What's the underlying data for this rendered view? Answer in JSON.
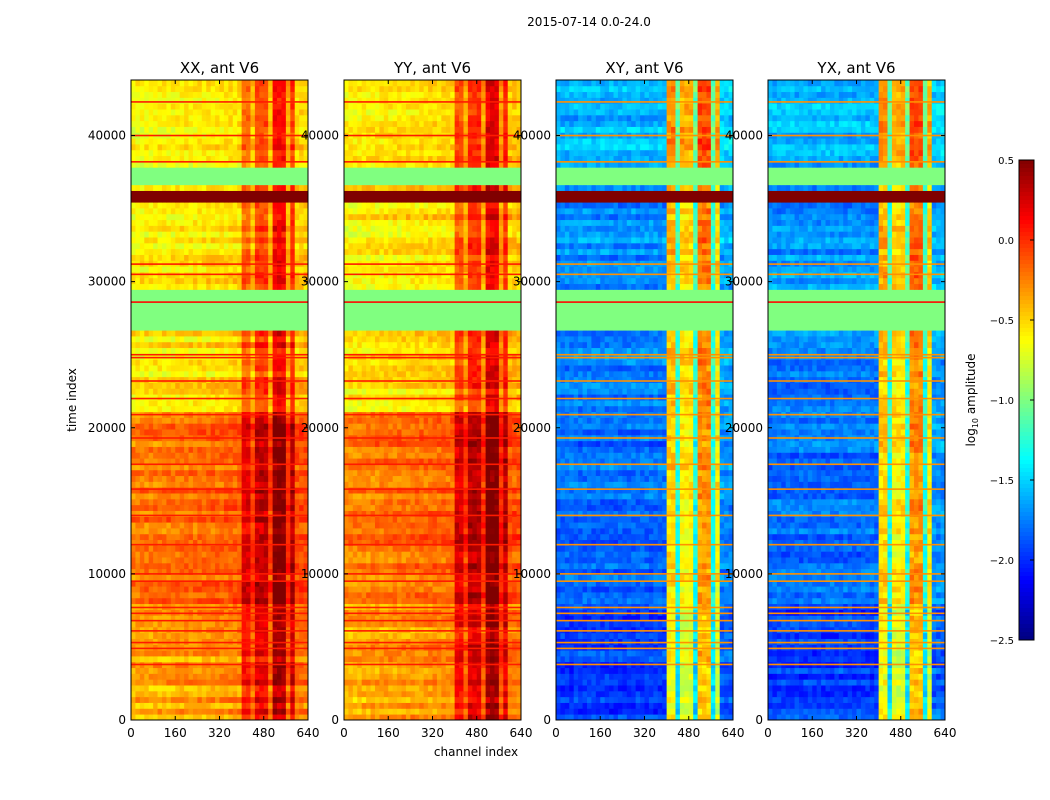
{
  "chart_data": {
    "type": "heatmap",
    "suptitle": "2015-07-14 0.0-24.0",
    "xlabel": "channel index",
    "ylabel": "time index",
    "xlim": [
      0,
      640
    ],
    "ylim": [
      0,
      43800
    ],
    "xticks": [
      "0",
      "160",
      "320",
      "480",
      "640"
    ],
    "yticks": [
      "0",
      "10000",
      "20000",
      "30000",
      "40000"
    ],
    "colorbar": {
      "label_main": "log",
      "label_sub": "10",
      "label_rest": " amplitude",
      "range": [
        -2.5,
        0.5
      ],
      "ticks": [
        "0.5",
        "0.0",
        "−0.5",
        "−1.0",
        "−1.5",
        "−2.0",
        "−2.5"
      ],
      "colormap": "jet"
    },
    "flagged_value": -1.0,
    "flagged_ranges": [
      [
        26500,
        29500
      ],
      [
        36500,
        37800
      ]
    ],
    "saturated_ranges": [
      [
        35400,
        36300
      ]
    ],
    "rfi_rows": [
      3800,
      4900,
      5300,
      6100,
      6800,
      7300,
      7700,
      9500,
      10000,
      12000,
      14000,
      15800,
      17500,
      19300,
      20900,
      22000,
      23200,
      24800,
      25000,
      28600,
      30500,
      31200,
      38200,
      40000,
      42300
    ],
    "panels": [
      {
        "title": "XX, ant V6",
        "segments": [
          [
            0,
            8000,
            -0.3
          ],
          [
            8000,
            21200,
            -0.15
          ],
          [
            21200,
            26500,
            -0.5
          ],
          [
            29500,
            35400,
            -0.5
          ],
          [
            36300,
            36500,
            -0.5
          ],
          [
            37800,
            43800,
            -0.55
          ]
        ],
        "low_channel_offset": -0.2,
        "channel_profile": [
          [
            0,
            400,
            0.0
          ],
          [
            400,
            435,
            0.35
          ],
          [
            435,
            450,
            0.1
          ],
          [
            450,
            500,
            0.45
          ],
          [
            500,
            515,
            0.1
          ],
          [
            515,
            560,
            0.65
          ],
          [
            560,
            575,
            0.15
          ],
          [
            575,
            600,
            0.5
          ],
          [
            600,
            640,
            0.05
          ]
        ]
      },
      {
        "title": "YY, ant V6",
        "segments": [
          [
            0,
            8000,
            -0.3
          ],
          [
            8000,
            21200,
            -0.15
          ],
          [
            21200,
            26500,
            -0.5
          ],
          [
            29500,
            35400,
            -0.5
          ],
          [
            36300,
            36500,
            -0.5
          ],
          [
            37800,
            43800,
            -0.55
          ]
        ],
        "low_channel_offset": -0.2,
        "channel_profile": [
          [
            0,
            400,
            0.0
          ],
          [
            400,
            435,
            0.4
          ],
          [
            435,
            450,
            0.15
          ],
          [
            450,
            500,
            0.5
          ],
          [
            500,
            515,
            0.15
          ],
          [
            515,
            560,
            0.7
          ],
          [
            560,
            575,
            0.2
          ],
          [
            575,
            600,
            0.5
          ],
          [
            600,
            640,
            0.05
          ]
        ]
      },
      {
        "title": "XY, ant V6",
        "segments": [
          [
            0,
            8000,
            -1.95
          ],
          [
            8000,
            21200,
            -1.8
          ],
          [
            21200,
            26500,
            -1.75
          ],
          [
            29500,
            35400,
            -1.7
          ],
          [
            36300,
            36500,
            -1.8
          ],
          [
            37800,
            43800,
            -1.6
          ]
        ],
        "low_channel_offset": 0.0,
        "channel_profile": [
          [
            0,
            400,
            0.0
          ],
          [
            400,
            435,
            1.3
          ],
          [
            435,
            450,
            0.5
          ],
          [
            450,
            500,
            1.2
          ],
          [
            500,
            515,
            0.5
          ],
          [
            515,
            560,
            1.5
          ],
          [
            560,
            575,
            0.5
          ],
          [
            575,
            600,
            1.2
          ],
          [
            600,
            640,
            0.1
          ]
        ]
      },
      {
        "title": "YX, ant V6",
        "segments": [
          [
            0,
            8000,
            -1.95
          ],
          [
            8000,
            21200,
            -1.8
          ],
          [
            21200,
            26500,
            -1.75
          ],
          [
            29500,
            35400,
            -1.7
          ],
          [
            36300,
            36500,
            -1.8
          ],
          [
            37800,
            43800,
            -1.6
          ]
        ],
        "low_channel_offset": 0.0,
        "channel_profile": [
          [
            0,
            400,
            0.0
          ],
          [
            400,
            435,
            1.3
          ],
          [
            435,
            450,
            0.5
          ],
          [
            450,
            500,
            1.2
          ],
          [
            500,
            515,
            0.5
          ],
          [
            515,
            560,
            1.5
          ],
          [
            560,
            575,
            0.5
          ],
          [
            575,
            600,
            1.2
          ],
          [
            600,
            640,
            0.1
          ]
        ]
      }
    ]
  }
}
